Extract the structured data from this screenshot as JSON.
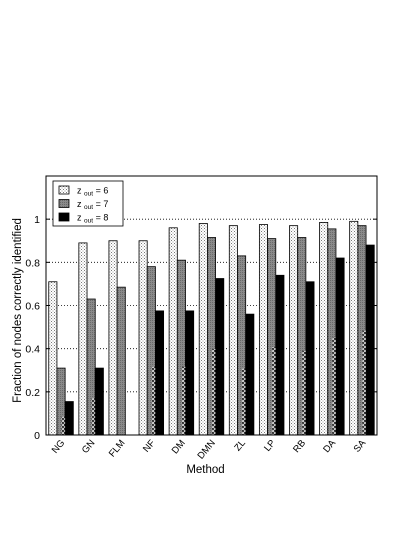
{
  "chart_data": {
    "type": "bar",
    "title": "",
    "xlabel": "Method",
    "ylabel": "Fraction of nodes correctly identified",
    "ylim": [
      0,
      1.2
    ],
    "yticks": [
      0,
      0.2,
      0.4,
      0.6,
      0.8,
      1
    ],
    "ytick_labels": [
      "0",
      "0.2",
      "0.4",
      "0.6",
      "0.8",
      "1"
    ],
    "grid": "horizontal-dotted",
    "legend_position": "top-left",
    "categories": [
      "NG",
      "GN",
      "FLM",
      "NF",
      "DM",
      "DMN",
      "ZL",
      "LP",
      "RB",
      "DA",
      "SA"
    ],
    "series": [
      {
        "name": "z out = 6",
        "legend_main": "z",
        "legend_sub": "out",
        "legend_value": "= 6",
        "pattern": "light-dotted",
        "values": [
          0.71,
          0.89,
          0.9,
          0.9,
          0.96,
          0.98,
          0.97,
          0.975,
          0.97,
          0.985,
          0.99
        ]
      },
      {
        "name": "z out = 7",
        "legend_main": "z",
        "legend_sub": "out",
        "legend_value": "= 7",
        "pattern": "gray",
        "values": [
          0.31,
          0.63,
          0.685,
          0.78,
          0.81,
          0.915,
          0.83,
          0.91,
          0.915,
          0.955,
          0.97
        ]
      },
      {
        "name": "z out = 8",
        "legend_main": "z",
        "legend_sub": "out",
        "legend_value": "= 8",
        "pattern": "black",
        "values": [
          0.155,
          0.31,
          null,
          0.575,
          0.575,
          0.725,
          0.56,
          0.74,
          0.71,
          0.82,
          0.88
        ]
      }
    ]
  }
}
